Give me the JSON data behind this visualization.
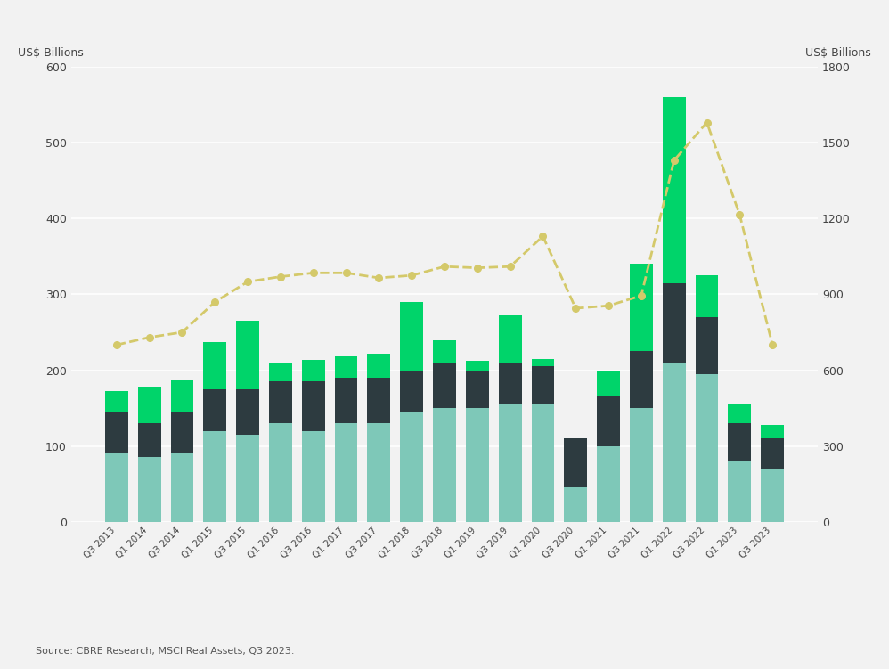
{
  "labels": [
    "Q3 2013",
    "Q1 2014",
    "Q3 2014",
    "Q1 2015",
    "Q3 2015",
    "Q1 2016",
    "Q3 2016",
    "Q1 2017",
    "Q3 2017",
    "Q1 2018",
    "Q3 2018",
    "Q1 2019",
    "Q3 2019",
    "Q1 2020",
    "Q3 2020",
    "Q1 2021",
    "Q3 2021",
    "Q1 2022",
    "Q3 2022",
    "Q1 2023",
    "Q3 2023"
  ],
  "americas": [
    90,
    85,
    90,
    120,
    115,
    130,
    120,
    130,
    130,
    145,
    150,
    150,
    155,
    155,
    45,
    100,
    150,
    210,
    195,
    80,
    70
  ],
  "emea": [
    55,
    45,
    55,
    55,
    60,
    55,
    65,
    60,
    60,
    55,
    60,
    50,
    55,
    50,
    65,
    65,
    75,
    105,
    75,
    50,
    40
  ],
  "apac": [
    28,
    48,
    42,
    62,
    90,
    25,
    28,
    28,
    32,
    90,
    30,
    12,
    62,
    10,
    0,
    35,
    115,
    245,
    55,
    25,
    18
  ],
  "moving_total": [
    700,
    730,
    750,
    870,
    950,
    970,
    985,
    985,
    965,
    975,
    1010,
    1005,
    1010,
    1130,
    845,
    855,
    895,
    1430,
    1580,
    1215,
    700
  ],
  "bar_color_americas": "#7ec8b8",
  "bar_color_emea": "#2d3b40",
  "bar_color_apac": "#00d46a",
  "line_color": "#d4c96a",
  "background_color": "#f2f2f2",
  "plot_bg_color": "#f2f2f2",
  "left_ylabel": "US$ Billions",
  "right_ylabel": "US$ Billions",
  "left_ylim": [
    0,
    600
  ],
  "right_ylim": [
    0,
    1800
  ],
  "left_yticks": [
    0,
    100,
    200,
    300,
    400,
    500,
    600
  ],
  "right_yticks": [
    0,
    300,
    600,
    900,
    1200,
    1500,
    1800
  ],
  "source_text": "Source: CBRE Research, MSCI Real Assets, Q3 2023."
}
